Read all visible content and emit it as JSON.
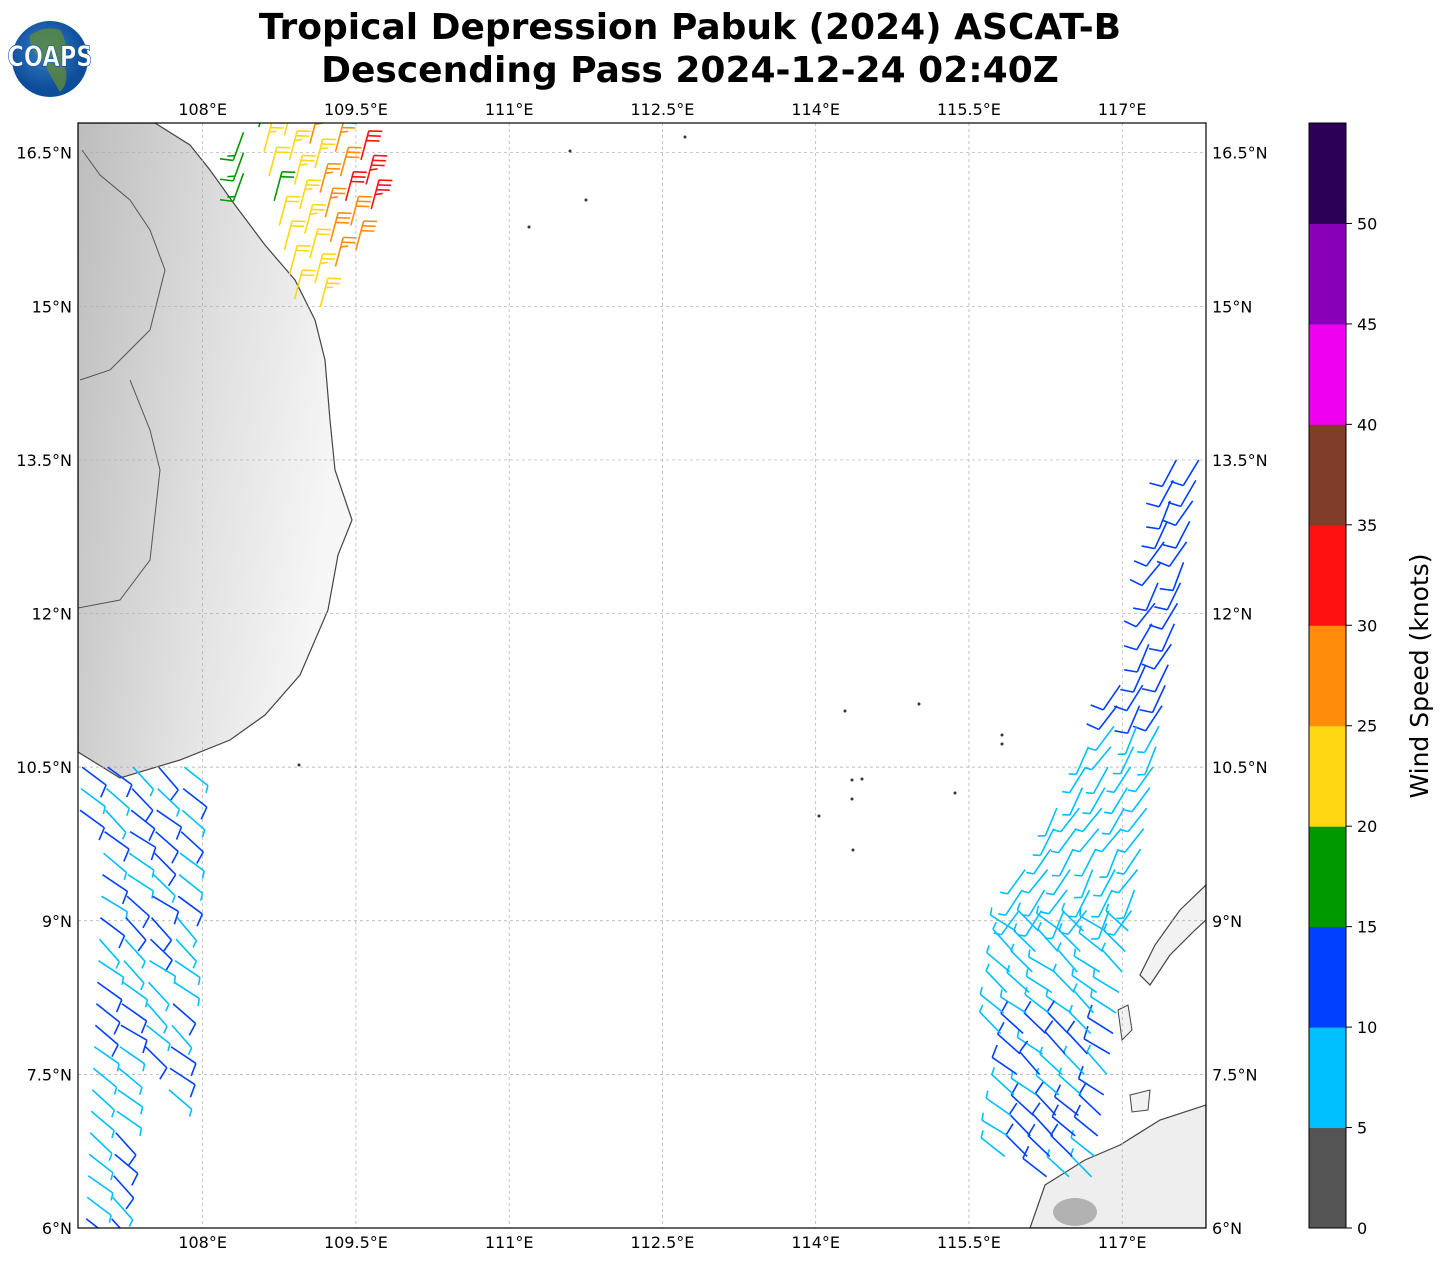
{
  "title": {
    "line1": "Tropical Depression Pabuk (2024) ASCAT-B",
    "line2": "Descending Pass 2024-12-24 02:40Z"
  },
  "logo": {
    "text": "COAPS"
  },
  "map": {
    "lon_range": [
      106.78,
      117.82
    ],
    "lat_range": [
      6.0,
      16.79
    ],
    "lon_ticks": [
      {
        "v": 108,
        "label": "108°E"
      },
      {
        "v": 109.5,
        "label": "109.5°E"
      },
      {
        "v": 111,
        "label": "111°E"
      },
      {
        "v": 112.5,
        "label": "112.5°E"
      },
      {
        "v": 114,
        "label": "114°E"
      },
      {
        "v": 115.5,
        "label": "115.5°E"
      },
      {
        "v": 117,
        "label": "117°E"
      }
    ],
    "lat_ticks": [
      {
        "v": 16.5,
        "label": "16.5°N"
      },
      {
        "v": 15,
        "label": "15°N"
      },
      {
        "v": 13.5,
        "label": "13.5°N"
      },
      {
        "v": 12,
        "label": "12°N"
      },
      {
        "v": 10.5,
        "label": "10.5°N"
      },
      {
        "v": 9,
        "label": "9°N"
      },
      {
        "v": 7.5,
        "label": "7.5°N"
      },
      {
        "v": 6,
        "label": "6°N"
      }
    ]
  },
  "colorbar": {
    "label": "Wind Speed (knots)",
    "ticks": [
      "0",
      "5",
      "10",
      "15",
      "20",
      "25",
      "30",
      "35",
      "40",
      "45",
      "50"
    ],
    "colors": [
      "#555555",
      "#00bfff",
      "#0040ff",
      "#009900",
      "#ffd712",
      "#ff8c0a",
      "#ff1010",
      "#7f3d2a",
      "#f000f0",
      "#8800b8",
      "#2d0058"
    ]
  }
}
